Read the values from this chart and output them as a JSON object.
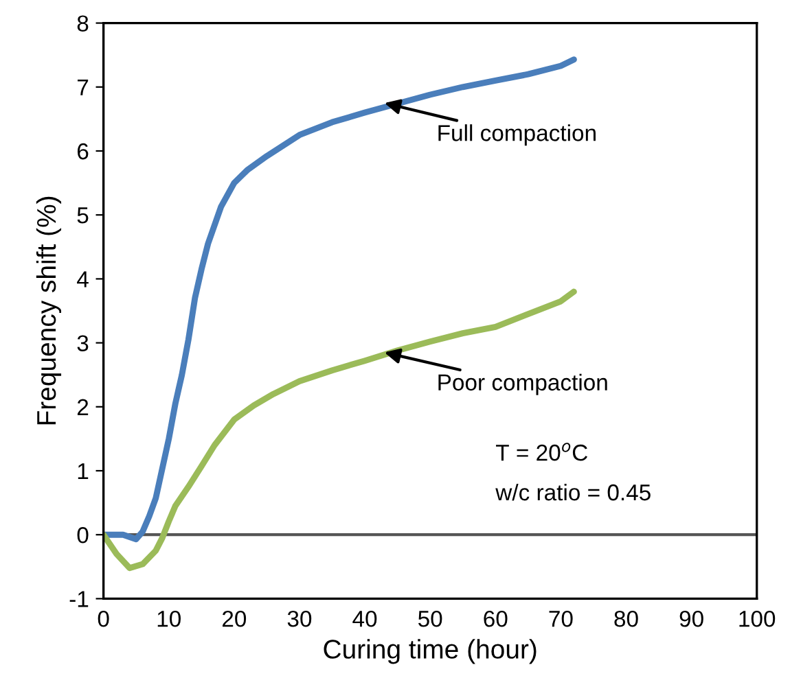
{
  "chart_data": {
    "type": "line",
    "xlabel": "Curing time (hour)",
    "ylabel": "Frequency shift (%)",
    "xlim": [
      0,
      100
    ],
    "xticks": [
      0,
      10,
      20,
      30,
      40,
      50,
      60,
      70,
      80,
      90,
      100
    ],
    "ylim": [
      -1,
      8
    ],
    "yticks": [
      -1,
      0,
      1,
      2,
      3,
      4,
      5,
      6,
      7,
      8
    ],
    "grid": false,
    "legend": false,
    "marker": "none",
    "line_style": "solid",
    "ref_lines": [
      {
        "axis": "y",
        "value": 0,
        "color": "#555555"
      }
    ],
    "series": [
      {
        "color": "#4a7ebb",
        "x": [
          0,
          3,
          5,
          6,
          7,
          8,
          10,
          11,
          12,
          13,
          14,
          15,
          16,
          18,
          20,
          22,
          25,
          30,
          35,
          40,
          45,
          50,
          55,
          60,
          65,
          70,
          72
        ],
        "values": [
          0,
          0,
          -0.07,
          0.05,
          0.29,
          0.57,
          1.5,
          2.05,
          2.5,
          3.05,
          3.7,
          4.15,
          4.55,
          5.13,
          5.5,
          5.7,
          5.92,
          6.25,
          6.45,
          6.6,
          6.74,
          6.88,
          7.0,
          7.1,
          7.2,
          7.33,
          7.43
        ]
      },
      {
        "color": "#9bbb59",
        "x": [
          0,
          2,
          4,
          6,
          8,
          9,
          10,
          11,
          12,
          13,
          15,
          17,
          20,
          23,
          26,
          30,
          35,
          40,
          45,
          50,
          55,
          60,
          65,
          70,
          72
        ],
        "values": [
          0,
          -0.3,
          -0.52,
          -0.46,
          -0.25,
          -0.05,
          0.21,
          0.45,
          0.6,
          0.75,
          1.07,
          1.4,
          1.8,
          2.02,
          2.2,
          2.4,
          2.57,
          2.72,
          2.88,
          3.02,
          3.15,
          3.25,
          3.45,
          3.65,
          3.8
        ]
      }
    ],
    "annotations": [
      {
        "text": "Full compaction",
        "x": 43,
        "y": 6.75
      },
      {
        "text": "Poor compaction",
        "x": 43,
        "y": 2.85
      },
      "T = 20$^{o}$C",
      "w/c ratio = 0.45"
    ]
  }
}
